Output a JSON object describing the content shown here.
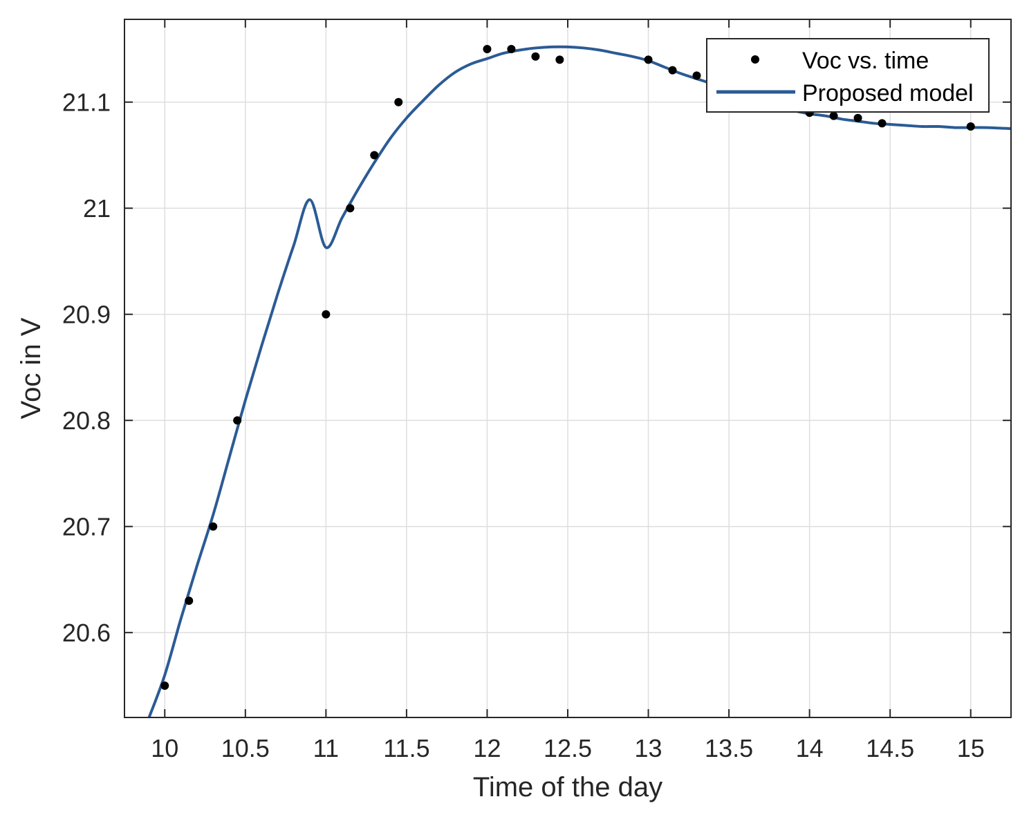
{
  "chart_data": {
    "type": "scatter",
    "xlabel": "Time of the day",
    "ylabel": "Voc in V",
    "xlim": [
      9.75,
      15.25
    ],
    "ylim": [
      20.52,
      21.178
    ],
    "grid": true,
    "legend_placement": "top-right",
    "x_ticks": [
      10,
      10.5,
      11,
      11.5,
      12,
      12.5,
      13,
      13.5,
      14,
      14.5,
      15
    ],
    "x_tick_labels": [
      "10",
      "10.5",
      "11",
      "11.5",
      "12",
      "12.5",
      "13",
      "13.5",
      "14",
      "14.5",
      "15"
    ],
    "y_ticks": [
      20.6,
      20.7,
      20.8,
      20.9,
      21,
      21.1
    ],
    "y_tick_labels": [
      "20.6",
      "20.7",
      "20.8",
      "20.9",
      "21",
      "21.1"
    ],
    "series": [
      {
        "name": "Voc vs. time",
        "kind": "scatter",
        "color": "#000000",
        "x": [
          10,
          10.15,
          10.3,
          10.45,
          11,
          11.15,
          11.3,
          11.45,
          12,
          12.15,
          12.3,
          12.45,
          13,
          13.15,
          13.3,
          14,
          14.15,
          14.3,
          14.45,
          15
        ],
        "y": [
          20.55,
          20.63,
          20.7,
          20.8,
          20.9,
          21.0,
          21.05,
          21.1,
          21.15,
          21.15,
          21.143,
          21.14,
          21.14,
          21.13,
          21.125,
          21.09,
          21.087,
          21.085,
          21.08,
          21.077
        ]
      },
      {
        "name": "Proposed model",
        "kind": "line",
        "color": "#2b5b95",
        "x": [
          9.9,
          10.0,
          10.1,
          10.2,
          10.3,
          10.4,
          10.5,
          10.6,
          10.7,
          10.8,
          10.9,
          11.0,
          11.1,
          11.2,
          11.3,
          11.4,
          11.5,
          11.6,
          11.7,
          11.8,
          11.9,
          12.0,
          12.1,
          12.2,
          12.3,
          12.4,
          12.5,
          12.6,
          12.7,
          12.8,
          12.9,
          13.0,
          13.1,
          13.2,
          13.3,
          13.4,
          13.5,
          13.6,
          13.7,
          13.8,
          13.9,
          14.0,
          14.1,
          14.2,
          14.3,
          14.4,
          14.5,
          14.6,
          14.7,
          14.8,
          14.9,
          15.0,
          15.1,
          15.25
        ],
        "y": [
          20.519,
          20.56,
          20.613,
          20.663,
          20.711,
          20.765,
          20.819,
          20.87,
          20.919,
          20.965,
          21.008,
          20.963,
          20.991,
          21.018,
          21.043,
          21.066,
          21.085,
          21.101,
          21.116,
          21.128,
          21.136,
          21.141,
          21.146,
          21.149,
          21.151,
          21.152,
          21.152,
          21.151,
          21.149,
          21.146,
          21.143,
          21.139,
          21.133,
          21.127,
          21.122,
          21.117,
          21.111,
          21.106,
          21.1,
          21.096,
          21.092,
          21.089,
          21.087,
          21.084,
          21.082,
          21.08,
          21.079,
          21.078,
          21.077,
          21.077,
          21.076,
          21.076,
          21.076,
          21.075
        ]
      }
    ]
  }
}
